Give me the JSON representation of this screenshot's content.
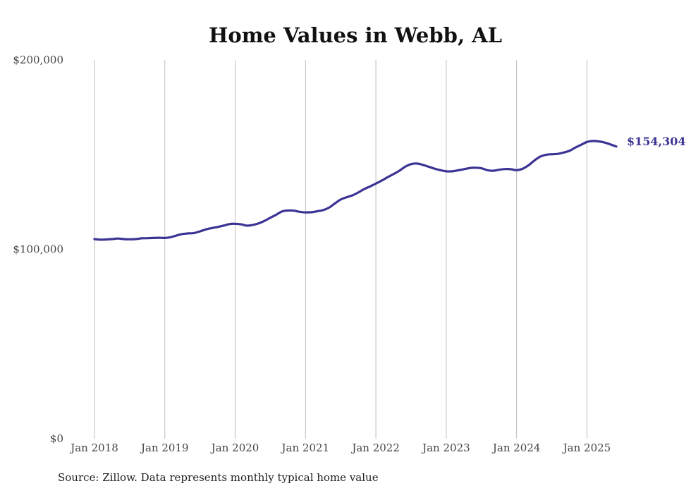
{
  "colors": {
    "line": "#3b3494",
    "grid": "#bdbdbd",
    "text": "#444444"
  },
  "source_note": "Source: Zillow. Data represents monthly typical home value",
  "chart_data": {
    "type": "line",
    "title": "Home Values in Webb, AL",
    "xlabel": "",
    "ylabel": "",
    "ylim": [
      0,
      200000
    ],
    "y_ticks": [
      0,
      100000,
      200000
    ],
    "y_tick_labels": [
      "$0",
      "$100,000",
      "$200,000"
    ],
    "x_tick_labels": [
      "Jan 2018",
      "Jan 2019",
      "Jan 2020",
      "Jan 2021",
      "Jan 2022",
      "Jan 2023",
      "Jan 2024",
      "Jan 2025"
    ],
    "grid": "vertical",
    "end_label": "$154,304",
    "series": [
      {
        "x": [
          "2018-01",
          "2018-02",
          "2018-03",
          "2018-04",
          "2018-05",
          "2018-06",
          "2018-07",
          "2018-08",
          "2018-09",
          "2018-10",
          "2018-11",
          "2018-12",
          "2019-01",
          "2019-02",
          "2019-03",
          "2019-04",
          "2019-05",
          "2019-06",
          "2019-07",
          "2019-08",
          "2019-09",
          "2019-10",
          "2019-11",
          "2019-12",
          "2020-01",
          "2020-02",
          "2020-03",
          "2020-04",
          "2020-05",
          "2020-06",
          "2020-07",
          "2020-08",
          "2020-09",
          "2020-10",
          "2020-11",
          "2020-12",
          "2021-01",
          "2021-02",
          "2021-03",
          "2021-04",
          "2021-05",
          "2021-06",
          "2021-07",
          "2021-08",
          "2021-09",
          "2021-10",
          "2021-11",
          "2021-12",
          "2022-01",
          "2022-02",
          "2022-03",
          "2022-04",
          "2022-05",
          "2022-06",
          "2022-07",
          "2022-08",
          "2022-09",
          "2022-10",
          "2022-11",
          "2022-12",
          "2023-01",
          "2023-02",
          "2023-03",
          "2023-04",
          "2023-05",
          "2023-06",
          "2023-07",
          "2023-08",
          "2023-09",
          "2023-10",
          "2023-11",
          "2023-12",
          "2024-01",
          "2024-02",
          "2024-03",
          "2024-04",
          "2024-05",
          "2024-06",
          "2024-07",
          "2024-08",
          "2024-09",
          "2024-10",
          "2024-11",
          "2024-12",
          "2025-01",
          "2025-02",
          "2025-03",
          "2025-04",
          "2025-05",
          "2025-06"
        ],
        "values": [
          105400,
          105100,
          105200,
          105400,
          105700,
          105400,
          105300,
          105400,
          105800,
          105900,
          106000,
          106100,
          106000,
          106400,
          107300,
          108100,
          108400,
          108600,
          109500,
          110500,
          111200,
          111800,
          112500,
          113300,
          113500,
          113200,
          112500,
          112900,
          113700,
          115000,
          116700,
          118300,
          120000,
          120500,
          120400,
          119800,
          119500,
          119600,
          120100,
          120700,
          122000,
          124200,
          126300,
          127500,
          128500,
          130000,
          131800,
          133200,
          134700,
          136300,
          138100,
          139700,
          141500,
          143600,
          145000,
          145300,
          144600,
          143600,
          142600,
          141800,
          141200,
          141200,
          141700,
          142300,
          142900,
          143100,
          142800,
          141800,
          141500,
          142000,
          142400,
          142300,
          141800,
          142500,
          144300,
          146800,
          148900,
          149900,
          150200,
          150400,
          151100,
          152000,
          153700,
          155200,
          156700,
          157200,
          157000,
          156400,
          155400,
          154304
        ]
      }
    ]
  }
}
